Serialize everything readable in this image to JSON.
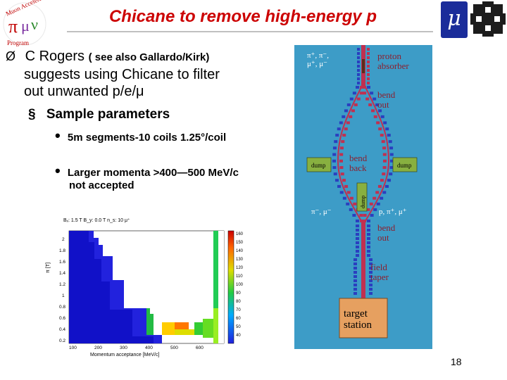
{
  "title": "Chicane to remove high-energy p",
  "bullet1": {
    "marker": "Ø",
    "line1_main": "C Rogers",
    "line1_small": "( see also Gallardo/Kirk)",
    "line2": "suggests using Chicane to filter",
    "line3": "out unwanted p/e/μ"
  },
  "bullet2": {
    "marker": "§",
    "text": "Sample parameters"
  },
  "bullet3": [
    {
      "marker": "•",
      "lines": [
        "5m segments-10 coils 1.25°/coil"
      ]
    },
    {
      "marker": "•",
      "lines": [
        "Larger momenta >400—500 MeV/c",
        "not accepted"
      ]
    }
  ],
  "logo_left": {
    "top_text": "Muon Accelerator",
    "greek": "πμν",
    "bottom_text": "Program"
  },
  "logo_mu": "μ",
  "page_number": "18",
  "heatmap": {
    "header": "Bₓ: 1.5 T   B_y: 0.0 T   n_s: 10   μ⁺",
    "ylabel": "π [T]",
    "xlabel": "Momentum acceptance [MeV/c]",
    "yticks": [
      "2",
      "1.8",
      "1.6",
      "1.4",
      "1.2",
      "1",
      "0.8",
      "0.6",
      "0.4",
      "0.2"
    ],
    "xticks": [
      "100",
      "200",
      "300",
      "400",
      "500",
      "600"
    ],
    "colorbar_ticks": [
      "160",
      "150",
      "140",
      "130",
      "120",
      "110",
      "100",
      "90",
      "80",
      "70",
      "60",
      "50",
      "40"
    ]
  },
  "diagram": {
    "background": "#3d9cc7",
    "labels": {
      "top_particles": "π⁺, π⁻,\nμ⁺, μ⁻",
      "proton_absorber": "proton\nabsorber",
      "bend_out_top": "bend\nout",
      "bend_back": "bend\nback",
      "dump_left": "dump",
      "dump_right": "dump",
      "dump_center": "dump",
      "left_particles": "π⁻, μ⁻",
      "right_particles": "p, π⁺, μ⁺",
      "bend_out_bottom": "bend\nout",
      "field_taper": "field\ntaper",
      "target_station": "target\nstation"
    }
  }
}
